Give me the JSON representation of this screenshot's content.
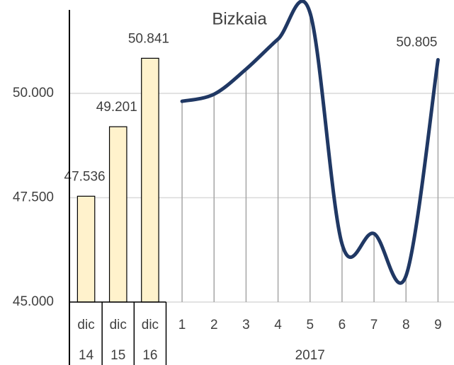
{
  "chart_data": {
    "type": "bar-line",
    "title": "Bizkaia",
    "categories": [
      "dic",
      "dic",
      "dic",
      "1",
      "2",
      "3",
      "4",
      "5",
      "6",
      "7",
      "8",
      "9"
    ],
    "category_groups": [
      "14",
      "15",
      "16",
      "2017"
    ],
    "series": [
      {
        "type": "bar",
        "color": "#fff2cc",
        "values": [
          47536,
          49201,
          50841,
          null,
          null,
          null,
          null,
          null,
          null,
          null,
          null,
          null
        ],
        "value_labels": [
          "47.536",
          "49.201",
          "50.841",
          null,
          null,
          null,
          null,
          null,
          null,
          null,
          null,
          null
        ]
      },
      {
        "type": "line",
        "color": "#203864",
        "values": [
          null,
          null,
          null,
          49810,
          49980,
          50580,
          51300,
          51930,
          46390,
          46640,
          45630,
          50805
        ],
        "value_labels": [
          null,
          null,
          null,
          null,
          null,
          null,
          null,
          null,
          null,
          null,
          null,
          "50.805"
        ]
      }
    ],
    "ylim": [
      45000,
      52000
    ],
    "yticks": [
      {
        "value": 45000,
        "label": "45.000"
      },
      {
        "value": 47500,
        "label": "47.500"
      },
      {
        "value": 50000,
        "label": "50.000"
      }
    ],
    "grid": true
  }
}
